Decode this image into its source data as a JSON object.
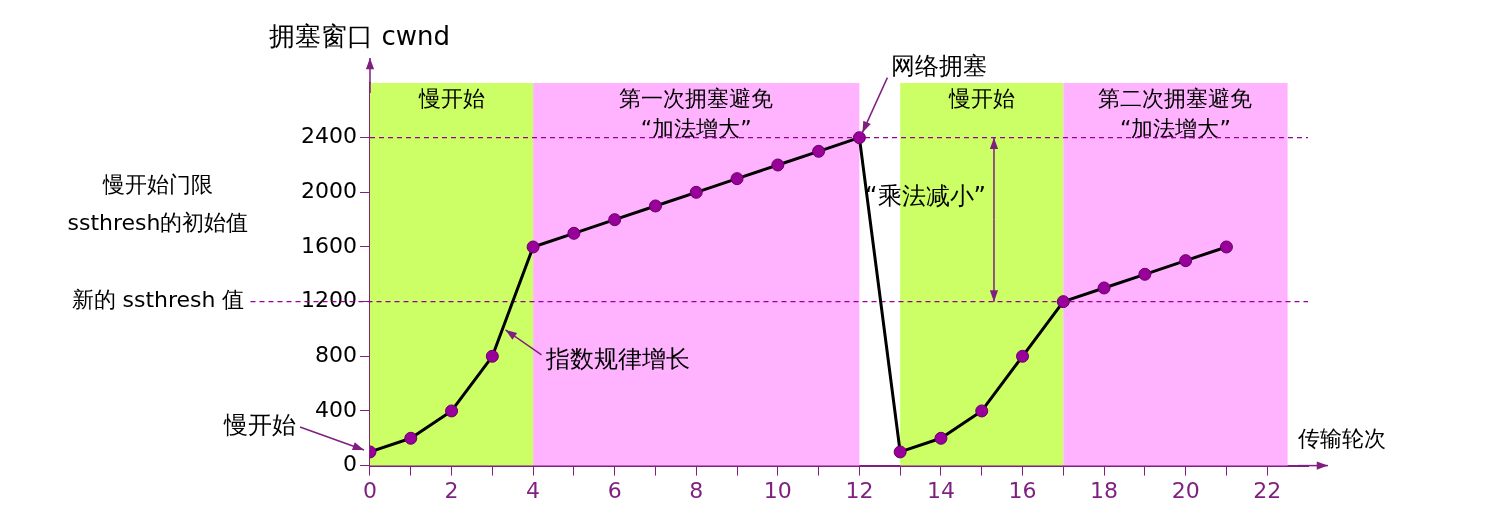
{
  "chart_data": {
    "type": "line",
    "ylabel": "拥塞窗口 cwnd",
    "xlabel": "传输轮次",
    "xlim": [
      0,
      23
    ],
    "ylim": [
      0,
      2800
    ],
    "xticks": [
      0,
      {
        "value": 1,
        "label": null
      },
      2,
      {
        "value": 3,
        "label": null
      },
      4,
      {
        "value": 5,
        "label": null
      },
      6,
      {
        "value": 7,
        "label": null
      },
      8,
      {
        "value": 9,
        "label": null
      },
      10,
      {
        "value": 11,
        "label": null
      },
      12,
      {
        "value": 13,
        "label": null
      },
      14,
      {
        "value": 15,
        "label": null
      },
      16,
      {
        "value": 17,
        "label": null
      },
      18,
      {
        "value": 19,
        "label": null
      },
      20,
      {
        "value": 21,
        "label": null
      },
      22
    ],
    "yticks": [
      0,
      400,
      800,
      1200,
      1600,
      2000,
      2400
    ],
    "grid": false,
    "legend": false,
    "marker": "circle",
    "series": [
      {
        "color": "#000000",
        "x": [
          0,
          1,
          2,
          3,
          4,
          5,
          6,
          7,
          8,
          9,
          10,
          11,
          12,
          13,
          14,
          15,
          16,
          17,
          18,
          19,
          20,
          21
        ],
        "values": [
          100,
          200,
          400,
          800,
          1600,
          1700,
          1800,
          1900,
          2000,
          2100,
          2200,
          2300,
          2400,
          100,
          200,
          400,
          800,
          1200,
          1300,
          1400,
          1500,
          1600
        ]
      }
    ],
    "bands": [
      {
        "axis": "x",
        "from": 0,
        "to": 4,
        "label": "慢开始",
        "color": "#ccff66"
      },
      {
        "axis": "x",
        "from": 4,
        "to": 12,
        "label": "第一次拥塞避免\n“加法增大”",
        "color": "#ffb3ff"
      },
      {
        "axis": "x",
        "from": 13,
        "to": 17,
        "label": "慢开始",
        "color": "#ccff66"
      },
      {
        "axis": "x",
        "from": 17,
        "to": 22.5,
        "label": "第二次拥塞避免\n“加法增大”",
        "color": "#ffb3ff"
      }
    ],
    "ref_lines": [
      {
        "axis": "y",
        "value": 2400,
        "line_style": "dashed",
        "color": "#990099"
      },
      {
        "axis": "y",
        "value": 1200,
        "label": "新的 ssthresh 值",
        "line_style": "dashed",
        "color": "#990099"
      }
    ],
    "annotations": [
      {
        "text": "网络拥塞",
        "x": 12,
        "y": 2400
      },
      {
        "text": "慢开始",
        "x": 0,
        "y": 100
      },
      "慢开始门限\nssthresh的初始值",
      {
        "text": "指数规律增长",
        "x": 3.25,
        "y": 1000
      },
      {
        "text": "“乘法减小”",
        "x": 15.3,
        "y": 2400
      }
    ]
  }
}
